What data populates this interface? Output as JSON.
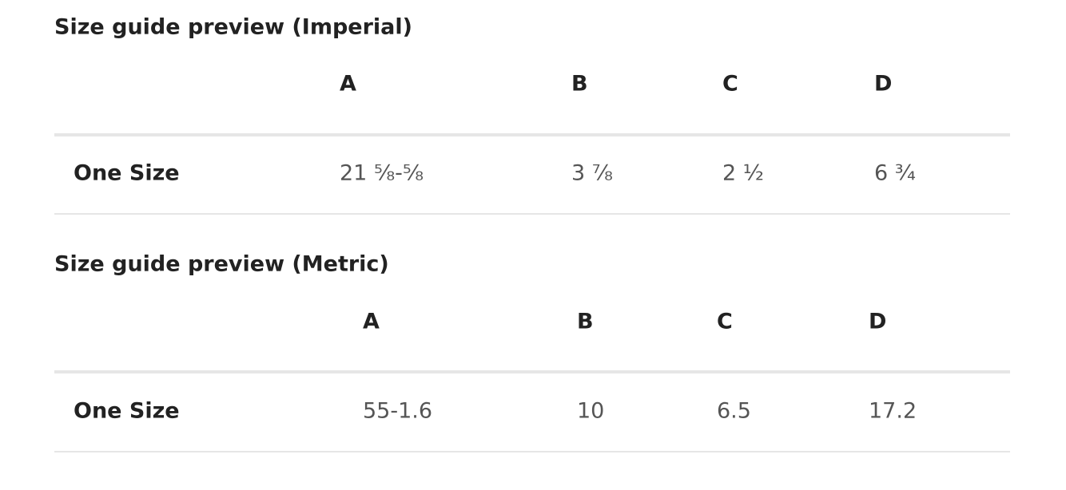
{
  "sections": [
    {
      "title": "Size guide preview (Imperial)",
      "table": {
        "headers": [
          "A",
          "B",
          "C",
          "D"
        ],
        "rows": [
          {
            "label": "One Size",
            "cells": [
              "21 ⅝-⅝",
              "3 ⅞",
              "2 ½",
              "6 ¾"
            ]
          }
        ]
      }
    },
    {
      "title": "Size guide preview (Metric)",
      "table": {
        "headers": [
          "A",
          "B",
          "C",
          "D"
        ],
        "rows": [
          {
            "label": "One Size",
            "cells": [
              "55-1.6",
              "10",
              "6.5",
              "17.2"
            ]
          }
        ]
      }
    }
  ]
}
